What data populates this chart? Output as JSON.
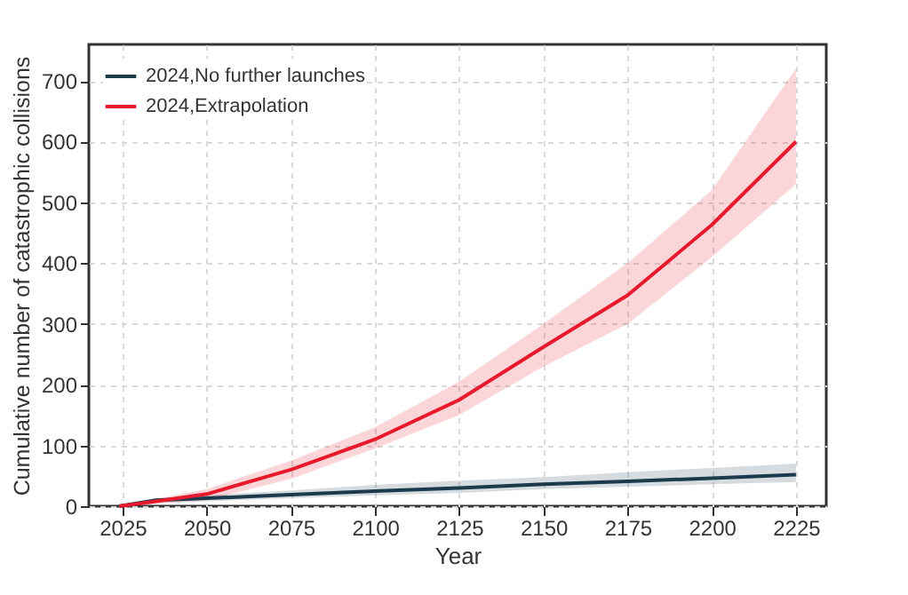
{
  "chart_data": {
    "type": "line",
    "xlabel": "Year",
    "ylabel": "Cumulative number of catastrophic collisions",
    "x": [
      2024,
      2035,
      2050,
      2075,
      2100,
      2125,
      2150,
      2175,
      2200,
      2225
    ],
    "series": [
      {
        "name": "2024,No further launches",
        "color": "#1b3a4b",
        "values": [
          0,
          10,
          13,
          19,
          25,
          30,
          36,
          41,
          46,
          52
        ],
        "lower": [
          0,
          6,
          8,
          13,
          18,
          22,
          28,
          32,
          36,
          40
        ],
        "upper": [
          0,
          13,
          18,
          26,
          35,
          42,
          48,
          56,
          63,
          70
        ]
      },
      {
        "name": "2024,Extrapolation",
        "color": "#e8192c",
        "values": [
          0,
          8,
          20,
          60,
          110,
          175,
          262,
          347,
          463,
          600
        ],
        "lower": [
          0,
          4,
          10,
          45,
          95,
          150,
          230,
          300,
          410,
          530
        ],
        "upper": [
          0,
          12,
          28,
          75,
          130,
          205,
          300,
          400,
          520,
          720
        ]
      }
    ],
    "xlim": [
      2015,
      2234
    ],
    "xticks": [
      2025,
      2050,
      2075,
      2100,
      2125,
      2150,
      2175,
      2200,
      2225
    ],
    "ylim": [
      0,
      760
    ],
    "yticks": [
      0,
      100,
      200,
      300,
      400,
      500,
      600,
      700
    ],
    "grid": true,
    "legend": "top left",
    "marker": "none",
    "line_style": "solid"
  }
}
